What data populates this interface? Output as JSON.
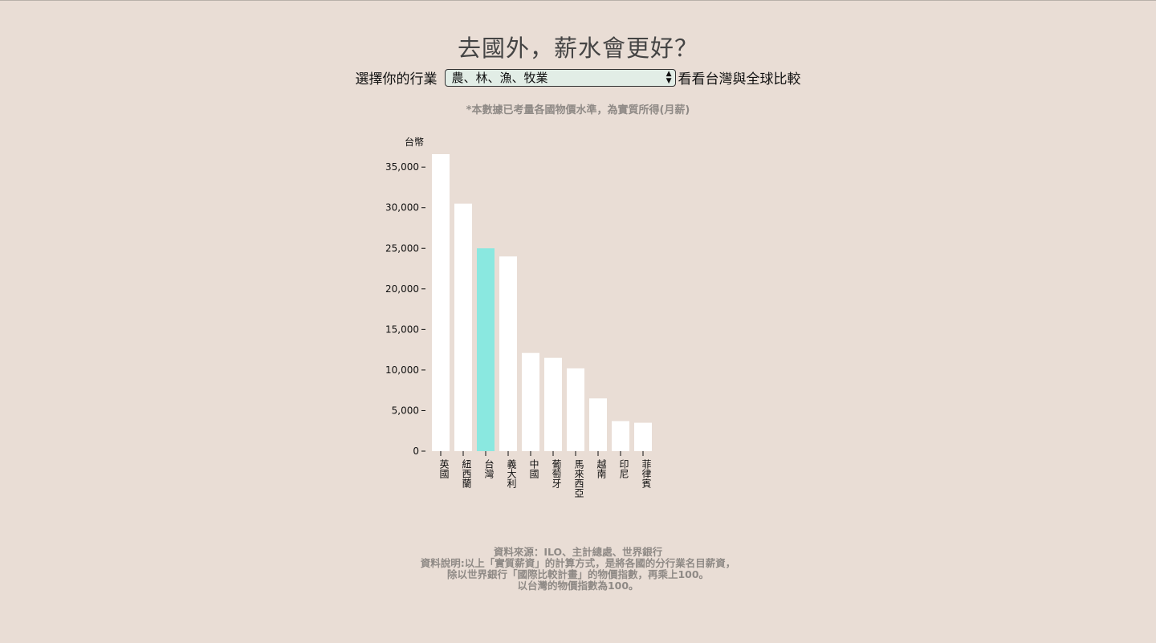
{
  "header": {
    "title": "去國外，薪水會更好？",
    "select_prefix": "選擇你的行業",
    "select_value": "農、林、漁、牧業",
    "select_suffix": "看看台灣與全球比較",
    "note": "*本數據已考量各國物價水準，為實質所得(月薪)"
  },
  "colors": {
    "background": "#e9ddd5",
    "bar": "#ffffff",
    "highlight": "#8ae8e0"
  },
  "chart_data": {
    "type": "bar",
    "ylabel": "台幣",
    "categories": [
      "英國",
      "紐西蘭",
      "台灣",
      "義大利",
      "中國",
      "葡萄牙",
      "馬來西亞",
      "越南",
      "印尼",
      "菲律賓"
    ],
    "values": [
      36600,
      30500,
      25000,
      24000,
      12100,
      11500,
      10200,
      6500,
      3700,
      3500
    ],
    "highlight": "台灣",
    "ylim": [
      0,
      36600
    ],
    "yticks": [
      0,
      5000,
      10000,
      15000,
      20000,
      25000,
      30000,
      35000
    ],
    "ytick_labels": [
      "0",
      "5,000",
      "10,000",
      "15,000",
      "20,000",
      "25,000",
      "30,000",
      "35,000"
    ],
    "grid": false
  },
  "footer": {
    "lines": [
      "資料來源：ILO、主計總處、世界銀行",
      "資料說明:以上「實質薪資」的計算方式，是將各國的分行業名目薪資，",
      "除以世界銀行「國際比較計畫」的物價指數，再乘上100。",
      "以台灣的物價指數為100。"
    ]
  }
}
